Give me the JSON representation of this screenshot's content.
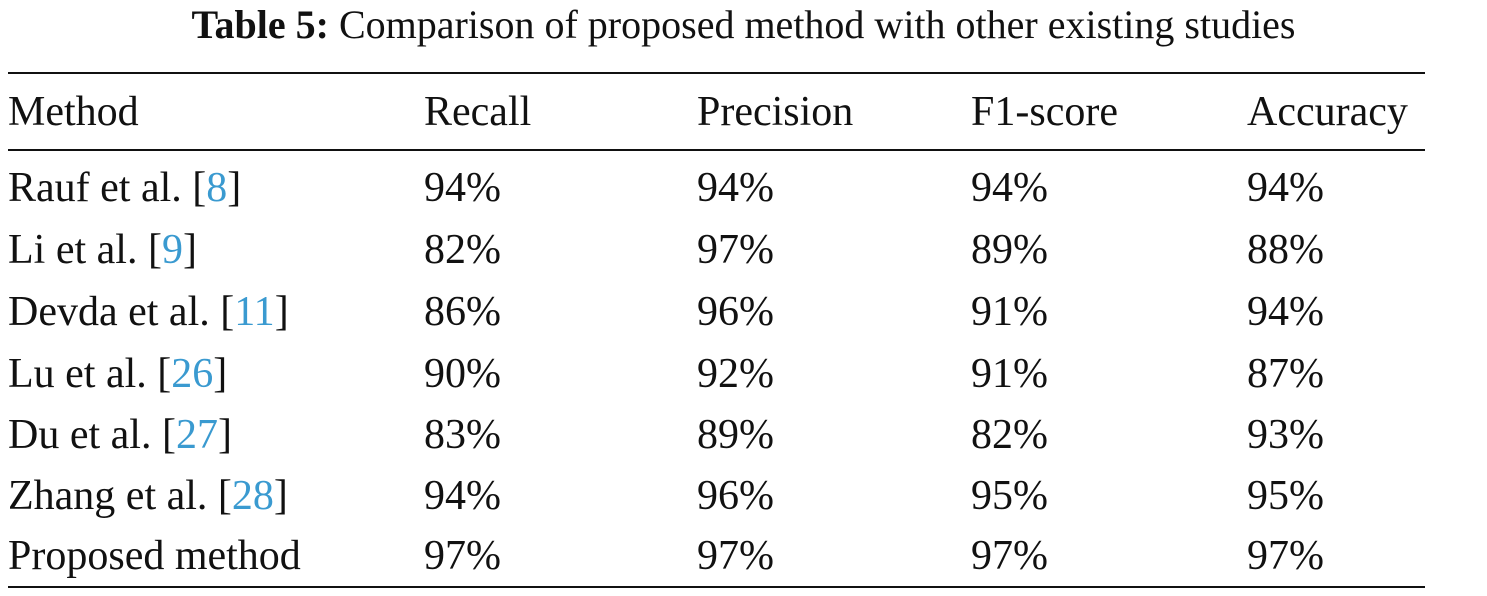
{
  "caption": {
    "label": "Table 5:",
    "text": "Comparison of proposed method with other existing studies"
  },
  "table": {
    "headers": [
      "Method",
      "Recall",
      "Precision",
      "F1-score",
      "Accuracy"
    ],
    "rows": [
      {
        "author": "Rauf et al. [",
        "ref": "8",
        "close": "]",
        "recall": "94%",
        "precision": "94%",
        "f1": "94%",
        "accuracy": "94%"
      },
      {
        "author": "Li et al. [",
        "ref": "9",
        "close": "]",
        "recall": "82%",
        "precision": "97%",
        "f1": "89%",
        "accuracy": "88%"
      },
      {
        "author": "Devda et al. [",
        "ref": "11",
        "close": "]",
        "recall": "86%",
        "precision": "96%",
        "f1": "91%",
        "accuracy": "94%"
      },
      {
        "author": "Lu et al. [",
        "ref": "26",
        "close": "]",
        "recall": "90%",
        "precision": "92%",
        "f1": "91%",
        "accuracy": "87%"
      },
      {
        "author": "Du et al. [",
        "ref": "27",
        "close": "]",
        "recall": "83%",
        "precision": "89%",
        "f1": "82%",
        "accuracy": "93%"
      },
      {
        "author": "Zhang et al. [",
        "ref": "28",
        "close": "]",
        "recall": "94%",
        "precision": "96%",
        "f1": "95%",
        "accuracy": "95%"
      },
      {
        "author": "Proposed method",
        "ref": "",
        "close": "",
        "recall": "97%",
        "precision": "97%",
        "f1": "97%",
        "accuracy": "97%"
      }
    ]
  },
  "colors": {
    "text": "#111111",
    "reference_link": "#3a9ad0",
    "background": "#ffffff"
  }
}
